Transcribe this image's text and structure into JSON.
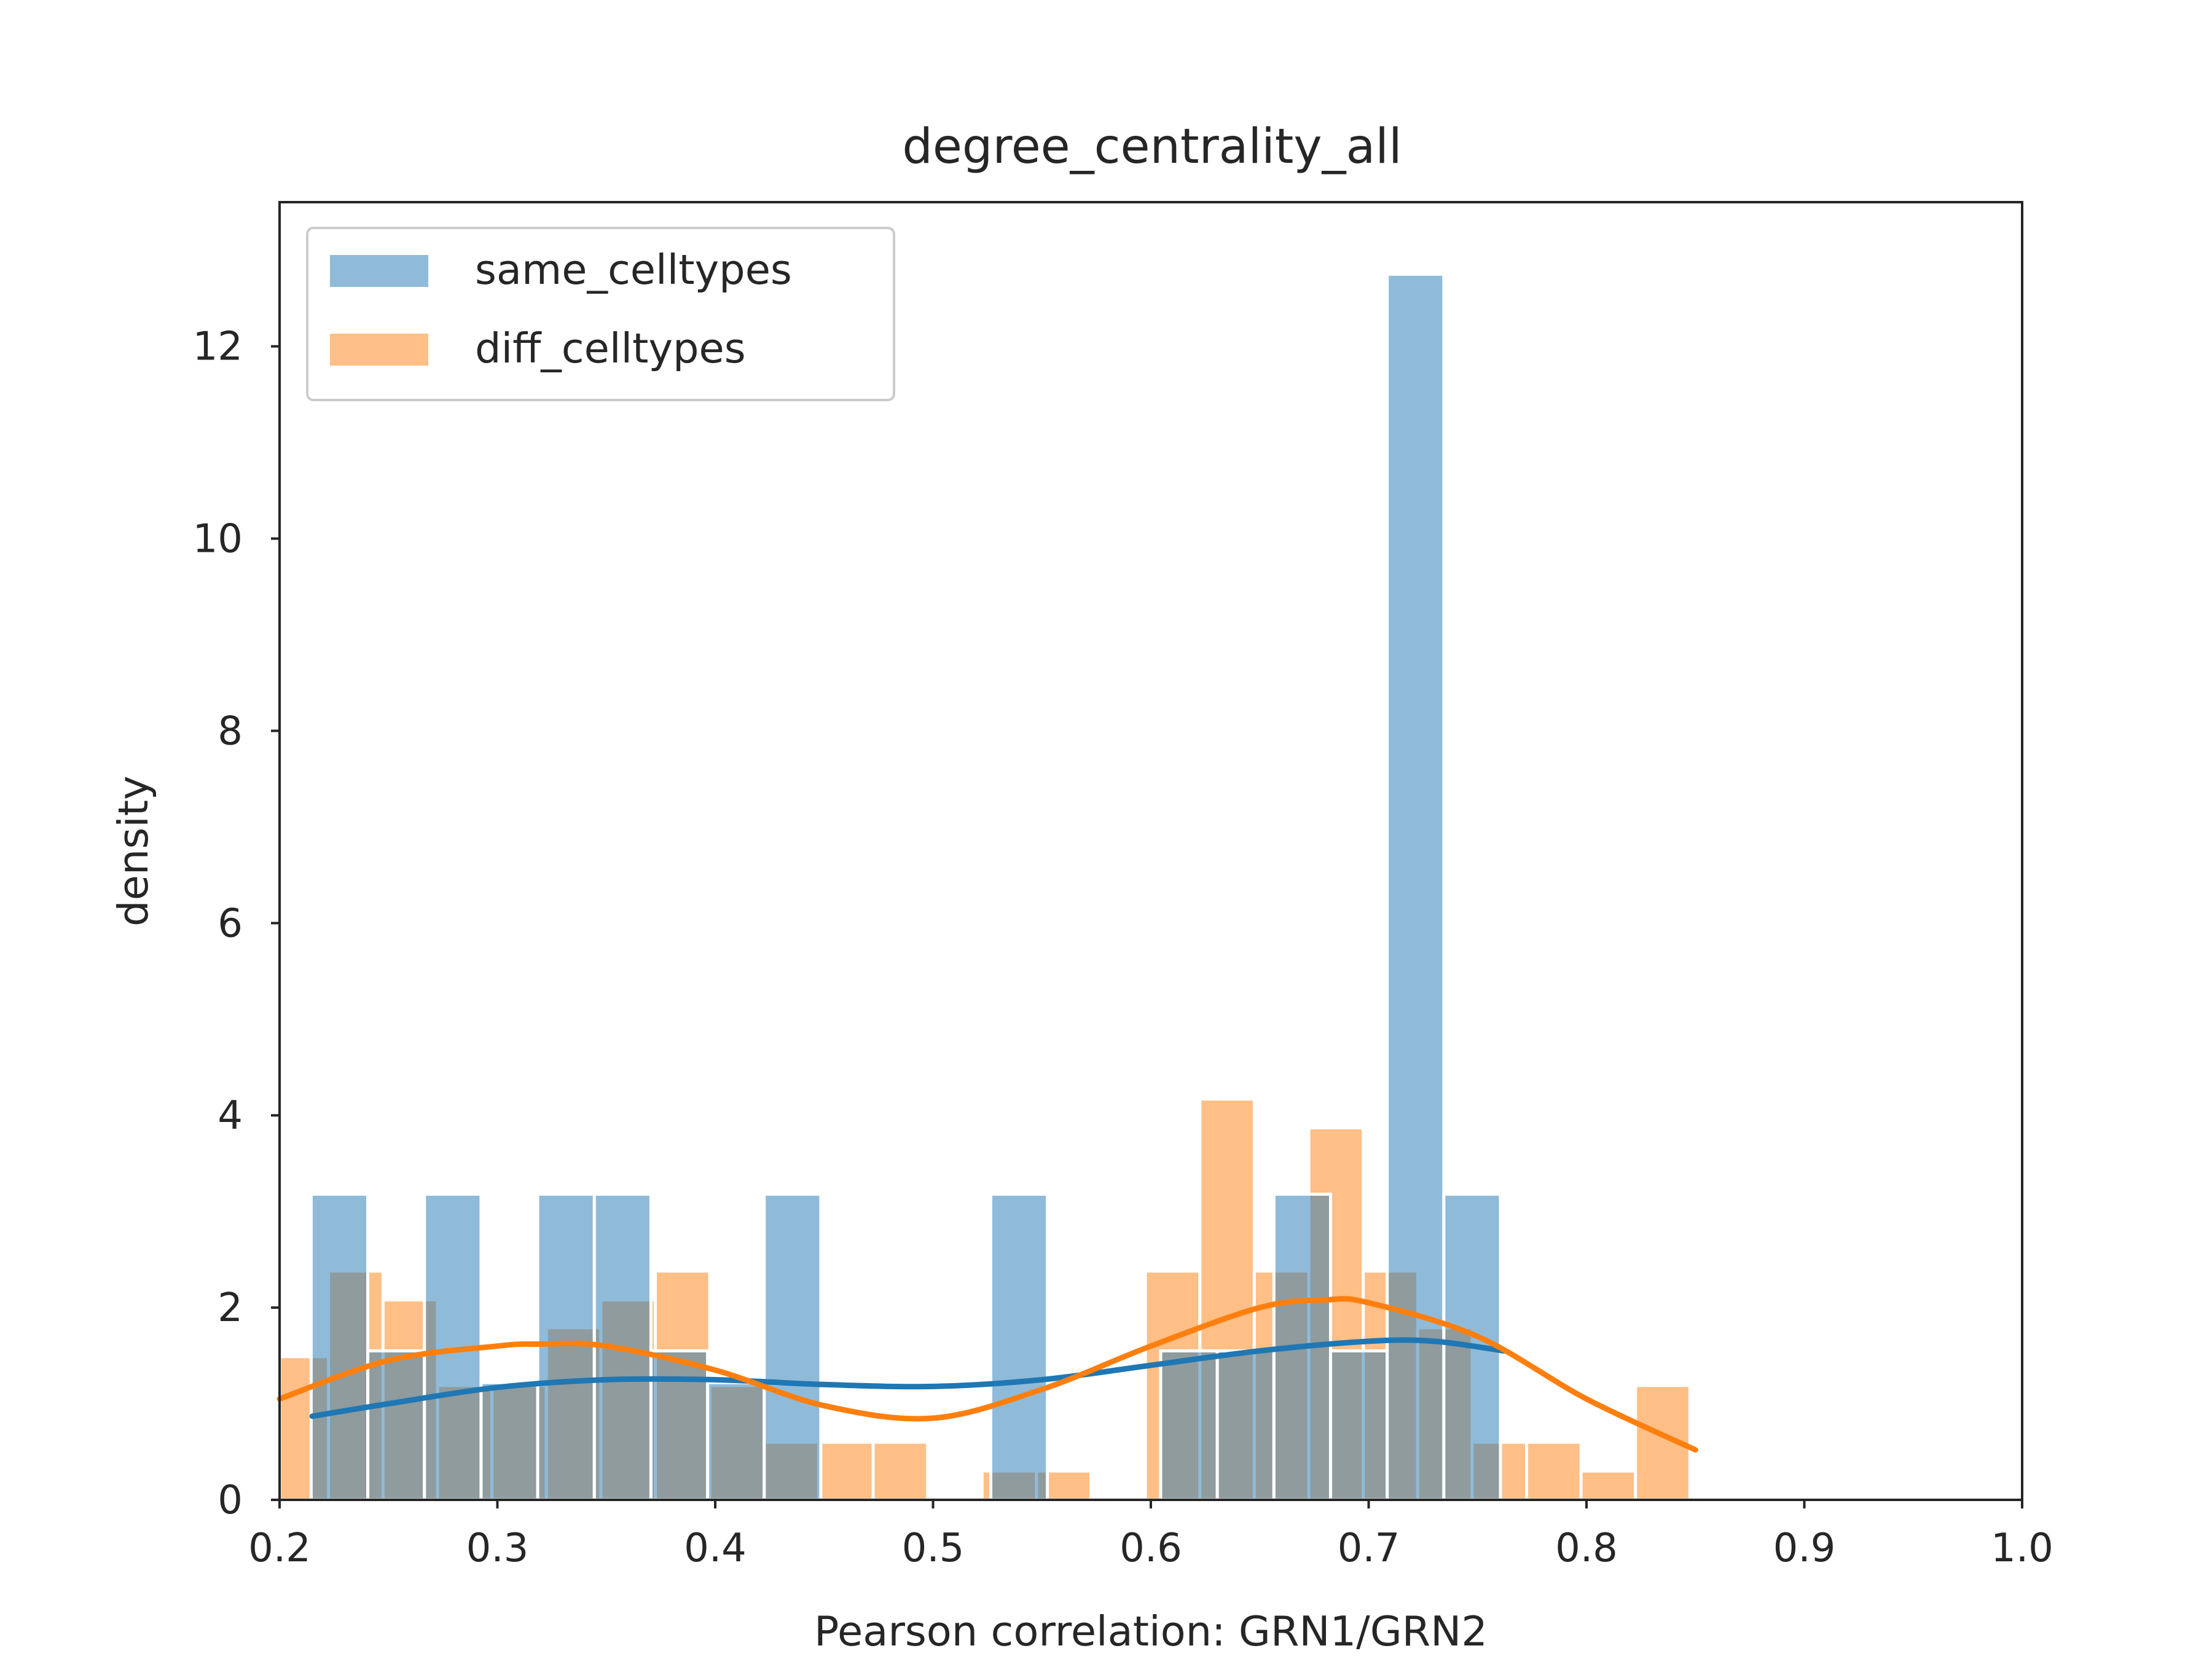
{
  "chart_data": {
    "type": "bar",
    "title": "degree_centrality_all",
    "xlabel": "Pearson correlation: GRN1/GRN2",
    "ylabel": "density",
    "xlim": [
      0.2,
      1.0
    ],
    "ylim": [
      0,
      13.5
    ],
    "xticks": [
      "0.2",
      "0.3",
      "0.4",
      "0.5",
      "0.6",
      "0.7",
      "0.8",
      "0.9",
      "1.0"
    ],
    "yticks": [
      "0",
      "2",
      "4",
      "6",
      "8",
      "10",
      "12"
    ],
    "legend_position": "upper-left",
    "grid": false,
    "series": [
      {
        "name": "same_celltypes",
        "color": "#1f77b4",
        "bins": [
          {
            "x0": 0.2145,
            "x1": 0.2405,
            "y": 3.18
          },
          {
            "x0": 0.2405,
            "x1": 0.2665,
            "y": 1.55
          },
          {
            "x0": 0.2665,
            "x1": 0.2925,
            "y": 3.18
          },
          {
            "x0": 0.2925,
            "x1": 0.3185,
            "y": 1.22
          },
          {
            "x0": 0.3185,
            "x1": 0.3445,
            "y": 3.18
          },
          {
            "x0": 0.3445,
            "x1": 0.3705,
            "y": 3.18
          },
          {
            "x0": 0.3705,
            "x1": 0.3965,
            "y": 1.55
          },
          {
            "x0": 0.3965,
            "x1": 0.4225,
            "y": 1.22
          },
          {
            "x0": 0.4225,
            "x1": 0.4485,
            "y": 3.18
          },
          {
            "x0": 0.4485,
            "x1": 0.4745,
            "y": 0.0
          },
          {
            "x0": 0.4745,
            "x1": 0.5005,
            "y": 0.0
          },
          {
            "x0": 0.5005,
            "x1": 0.5265,
            "y": 0.0
          },
          {
            "x0": 0.5265,
            "x1": 0.5525,
            "y": 3.18
          },
          {
            "x0": 0.5525,
            "x1": 0.5785,
            "y": 0.0
          },
          {
            "x0": 0.5785,
            "x1": 0.6045,
            "y": 0.0
          },
          {
            "x0": 0.6045,
            "x1": 0.6305,
            "y": 1.55
          },
          {
            "x0": 0.6305,
            "x1": 0.6565,
            "y": 1.55
          },
          {
            "x0": 0.6565,
            "x1": 0.6825,
            "y": 3.18
          },
          {
            "x0": 0.6825,
            "x1": 0.7085,
            "y": 1.55
          },
          {
            "x0": 0.7085,
            "x1": 0.7345,
            "y": 12.75
          },
          {
            "x0": 0.7345,
            "x1": 0.7605,
            "y": 3.18
          }
        ],
        "kde": [
          [
            0.215,
            0.87
          ],
          [
            0.25,
            1.0
          ],
          [
            0.3,
            1.17
          ],
          [
            0.35,
            1.25
          ],
          [
            0.4,
            1.25
          ],
          [
            0.45,
            1.2
          ],
          [
            0.5,
            1.18
          ],
          [
            0.55,
            1.25
          ],
          [
            0.6,
            1.4
          ],
          [
            0.65,
            1.55
          ],
          [
            0.7,
            1.65
          ],
          [
            0.73,
            1.65
          ],
          [
            0.762,
            1.55
          ]
        ]
      },
      {
        "name": "diff_celltypes",
        "color": "#ff7f0e",
        "bins": [
          {
            "x0": 0.1975,
            "x1": 0.2225,
            "y": 1.49
          },
          {
            "x0": 0.2225,
            "x1": 0.2475,
            "y": 2.38
          },
          {
            "x0": 0.2475,
            "x1": 0.2725,
            "y": 2.08
          },
          {
            "x0": 0.2725,
            "x1": 0.2975,
            "y": 1.19
          },
          {
            "x0": 0.2975,
            "x1": 0.3225,
            "y": 1.19
          },
          {
            "x0": 0.3225,
            "x1": 0.3475,
            "y": 1.79
          },
          {
            "x0": 0.3475,
            "x1": 0.3725,
            "y": 2.08
          },
          {
            "x0": 0.3725,
            "x1": 0.3975,
            "y": 2.38
          },
          {
            "x0": 0.3975,
            "x1": 0.4225,
            "y": 1.19
          },
          {
            "x0": 0.4225,
            "x1": 0.4475,
            "y": 0.6
          },
          {
            "x0": 0.4475,
            "x1": 0.4725,
            "y": 0.6
          },
          {
            "x0": 0.4725,
            "x1": 0.4975,
            "y": 0.6
          },
          {
            "x0": 0.4975,
            "x1": 0.5225,
            "y": 0.0
          },
          {
            "x0": 0.5225,
            "x1": 0.5475,
            "y": 0.3
          },
          {
            "x0": 0.5475,
            "x1": 0.5725,
            "y": 0.3
          },
          {
            "x0": 0.5725,
            "x1": 0.5975,
            "y": 0.0
          },
          {
            "x0": 0.5975,
            "x1": 0.6225,
            "y": 2.38
          },
          {
            "x0": 0.6225,
            "x1": 0.6475,
            "y": 4.17
          },
          {
            "x0": 0.6475,
            "x1": 0.6725,
            "y": 2.38
          },
          {
            "x0": 0.6725,
            "x1": 0.6975,
            "y": 3.87
          },
          {
            "x0": 0.6975,
            "x1": 0.7225,
            "y": 2.38
          },
          {
            "x0": 0.7225,
            "x1": 0.7475,
            "y": 1.79
          },
          {
            "x0": 0.7475,
            "x1": 0.7725,
            "y": 0.6
          },
          {
            "x0": 0.7725,
            "x1": 0.7975,
            "y": 0.6
          },
          {
            "x0": 0.7975,
            "x1": 0.8225,
            "y": 0.3
          },
          {
            "x0": 0.8225,
            "x1": 0.8475,
            "y": 1.19
          }
        ],
        "kde": [
          [
            0.2,
            1.05
          ],
          [
            0.25,
            1.45
          ],
          [
            0.3,
            1.6
          ],
          [
            0.32,
            1.62
          ],
          [
            0.35,
            1.6
          ],
          [
            0.4,
            1.35
          ],
          [
            0.45,
            0.98
          ],
          [
            0.5,
            0.85
          ],
          [
            0.55,
            1.15
          ],
          [
            0.6,
            1.6
          ],
          [
            0.65,
            2.0
          ],
          [
            0.68,
            2.08
          ],
          [
            0.7,
            2.05
          ],
          [
            0.75,
            1.7
          ],
          [
            0.8,
            1.05
          ],
          [
            0.85,
            0.52
          ]
        ]
      }
    ]
  }
}
